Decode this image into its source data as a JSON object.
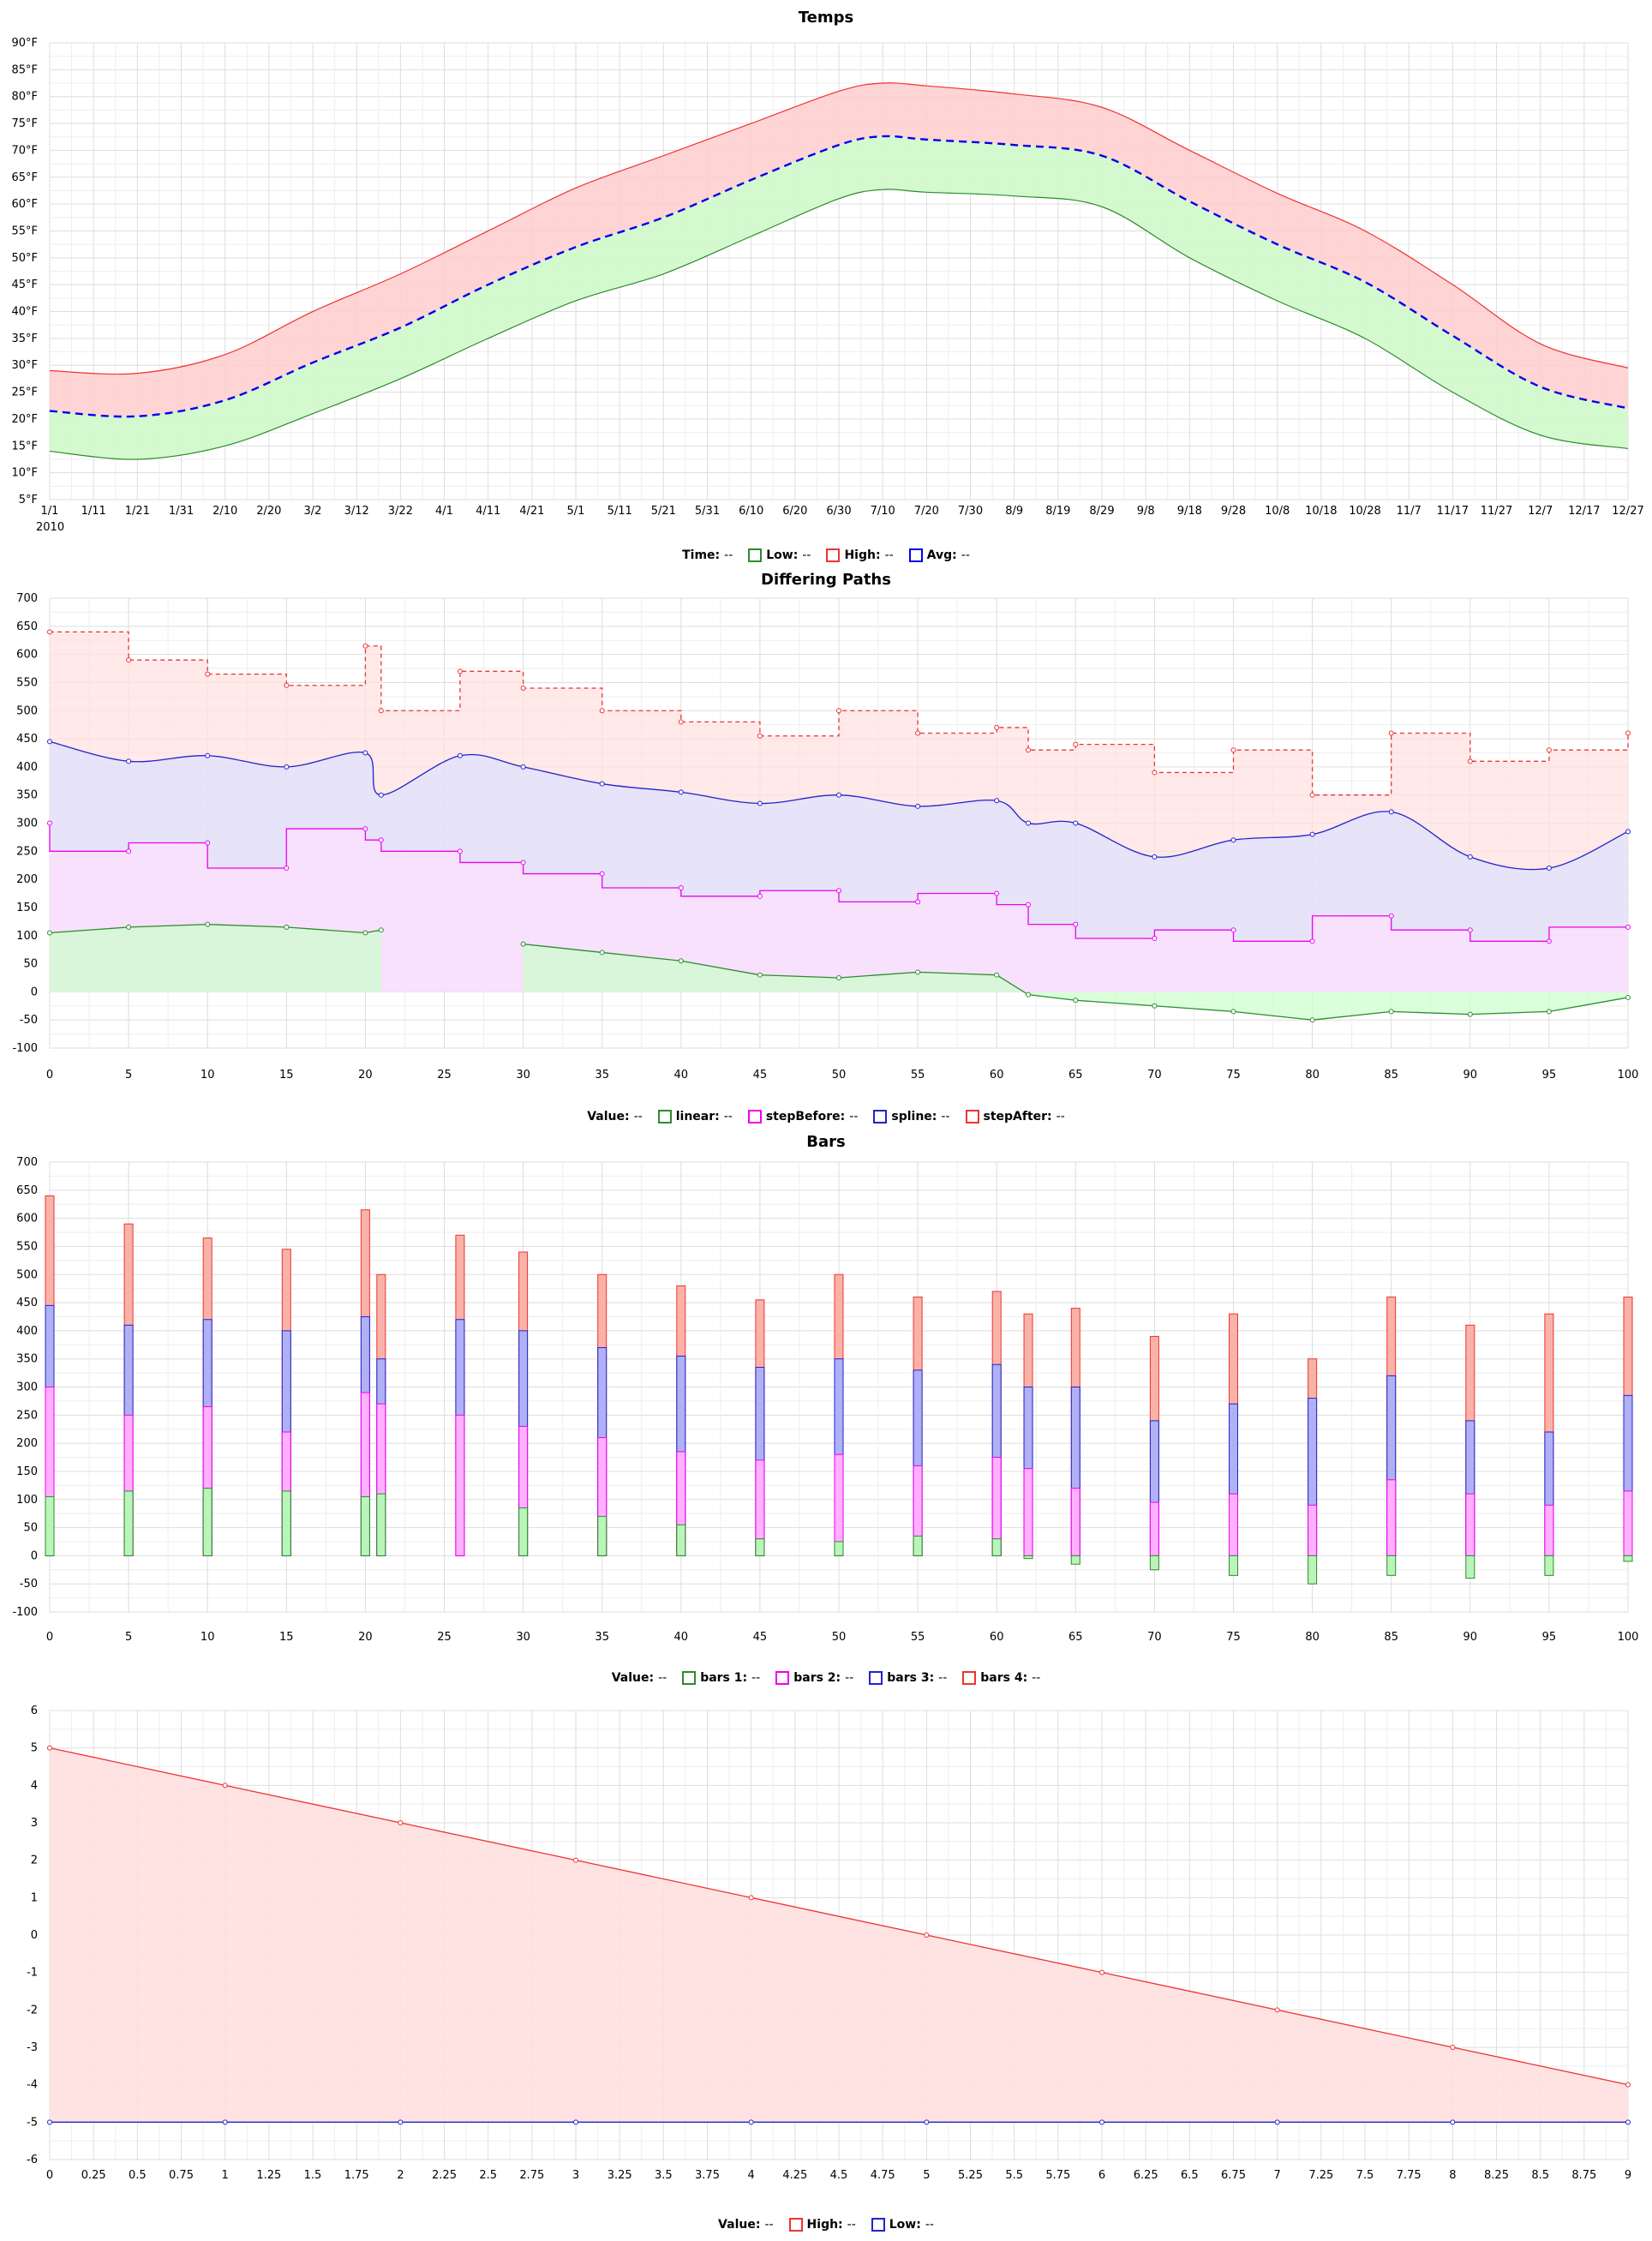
{
  "chart_data": [
    {
      "type": "area",
      "title": "Temps",
      "ylim": [
        5,
        90
      ],
      "yticks": [
        "5°F",
        "10°F",
        "15°F",
        "20°F",
        "25°F",
        "30°F",
        "35°F",
        "40°F",
        "45°F",
        "50°F",
        "55°F",
        "60°F",
        "65°F",
        "70°F",
        "75°F",
        "80°F",
        "85°F",
        "90°F"
      ],
      "xlim": [
        0,
        364
      ],
      "xticks": [
        "1/1",
        "1/11",
        "1/21",
        "1/31",
        "2/10",
        "2/20",
        "3/2",
        "3/12",
        "3/22",
        "4/1",
        "4/11",
        "4/21",
        "5/1",
        "5/11",
        "5/21",
        "5/31",
        "6/10",
        "6/20",
        "6/30",
        "7/10",
        "7/20",
        "7/30",
        "8/9",
        "8/19",
        "8/29",
        "9/8",
        "9/18",
        "9/28",
        "10/8",
        "10/18",
        "10/28",
        "11/7",
        "11/17",
        "11/27",
        "12/7",
        "12/17",
        "12/27"
      ],
      "xtick_year": "2010",
      "grid": true,
      "x": [
        "1/1",
        "1/21",
        "2/10",
        "3/2",
        "3/22",
        "4/11",
        "5/1",
        "5/21",
        "6/10",
        "6/30",
        "7/10",
        "7/20",
        "8/9",
        "8/29",
        "9/18",
        "10/8",
        "10/28",
        "11/17",
        "12/7",
        "12/27"
      ],
      "series": [
        {
          "name": "Low",
          "color": "#2e8b2e",
          "fill": "#ccffcc",
          "values": [
            14,
            12.5,
            15,
            21,
            27.5,
            35,
            42,
            47,
            54,
            61,
            62.7,
            62.2,
            61.5,
            59.5,
            50,
            42,
            35,
            25,
            17,
            14.5
          ]
        },
        {
          "name": "High",
          "color": "#ee3333",
          "fill": "#ffcccc",
          "values": [
            29,
            28.5,
            32,
            40,
            47,
            55,
            63,
            69,
            75,
            81,
            82.5,
            82,
            80.5,
            78,
            70,
            62,
            55,
            45,
            34,
            29.5
          ]
        },
        {
          "name": "Avg",
          "color": "#0000ee",
          "dashed": true,
          "values": [
            21.5,
            20.5,
            23.5,
            30.5,
            37,
            45,
            52,
            57.5,
            64.5,
            71,
            72.6,
            72,
            71,
            69,
            60.5,
            52.5,
            45.5,
            35.5,
            26,
            22
          ]
        }
      ],
      "legend": {
        "key": "Time:",
        "value": "--",
        "items": [
          {
            "label": "Low:",
            "value": "--",
            "color": "#2e8b2e"
          },
          {
            "label": "High:",
            "value": "--",
            "color": "#ee3333"
          },
          {
            "label": "Avg:",
            "value": "--",
            "color": "#0000ee"
          }
        ]
      }
    },
    {
      "type": "line",
      "title": "Differing Paths",
      "ylim": [
        -100,
        700
      ],
      "yticks": [
        "-100",
        "-50",
        "0",
        "50",
        "100",
        "150",
        "200",
        "250",
        "300",
        "350",
        "400",
        "450",
        "500",
        "550",
        "600",
        "650",
        "700"
      ],
      "xlim": [
        0,
        100
      ],
      "xticks": [
        "0",
        "5",
        "10",
        "15",
        "20",
        "25",
        "30",
        "35",
        "40",
        "45",
        "50",
        "55",
        "60",
        "65",
        "70",
        "75",
        "80",
        "85",
        "90",
        "95",
        "100"
      ],
      "grid": true,
      "x": [
        0,
        5,
        10,
        15,
        20,
        21,
        26,
        30,
        35,
        40,
        45,
        50,
        55,
        60,
        62,
        65,
        70,
        75,
        80,
        85,
        90,
        95,
        100
      ],
      "series": [
        {
          "name": "linear",
          "color": "#2e8b2e",
          "fill": "#ccffcc",
          "values": [
            105,
            115,
            120,
            115,
            105,
            110,
            null,
            85,
            70,
            55,
            30,
            25,
            35,
            30,
            -5,
            -15,
            -25,
            -35,
            -50,
            -35,
            -40,
            -35,
            -10
          ]
        },
        {
          "name": "stepBefore",
          "color": "#ee00ee",
          "fill": "#ffe0ff",
          "values": [
            300,
            250,
            265,
            220,
            290,
            270,
            250,
            230,
            210,
            185,
            170,
            180,
            160,
            175,
            155,
            120,
            95,
            110,
            90,
            135,
            110,
            90,
            115
          ]
        },
        {
          "name": "spline",
          "color": "#2222cc",
          "fill": "#dde0ff",
          "values": [
            445,
            410,
            420,
            400,
            425,
            350,
            420,
            400,
            370,
            355,
            335,
            350,
            330,
            340,
            300,
            300,
            240,
            270,
            280,
            320,
            240,
            220,
            285
          ]
        },
        {
          "name": "stepAfter",
          "color": "#ee3333",
          "fill": "#ffe0e0",
          "dashed": true,
          "values": [
            640,
            590,
            565,
            545,
            615,
            500,
            570,
            540,
            500,
            480,
            455,
            500,
            460,
            470,
            430,
            440,
            390,
            430,
            350,
            460,
            410,
            430,
            460
          ]
        }
      ],
      "legend": {
        "key": "Value:",
        "value": "--",
        "items": [
          {
            "label": "linear:",
            "value": "--",
            "color": "#2e8b2e"
          },
          {
            "label": "stepBefore:",
            "value": "--",
            "color": "#ee00ee"
          },
          {
            "label": "spline:",
            "value": "--",
            "color": "#2222cc"
          },
          {
            "label": "stepAfter:",
            "value": "--",
            "color": "#ee3333"
          }
        ]
      }
    },
    {
      "type": "bar",
      "title": "Bars",
      "ylim": [
        -100,
        700
      ],
      "yticks": [
        "-100",
        "-50",
        "0",
        "50",
        "100",
        "150",
        "200",
        "250",
        "300",
        "350",
        "400",
        "450",
        "500",
        "550",
        "600",
        "650",
        "700"
      ],
      "xlim": [
        0,
        100
      ],
      "xticks": [
        "0",
        "5",
        "10",
        "15",
        "20",
        "25",
        "30",
        "35",
        "40",
        "45",
        "50",
        "55",
        "60",
        "65",
        "70",
        "75",
        "80",
        "85",
        "90",
        "95",
        "100"
      ],
      "grid": true,
      "x": [
        0,
        5,
        10,
        15,
        20,
        21,
        26,
        30,
        35,
        40,
        45,
        50,
        55,
        60,
        62,
        65,
        70,
        75,
        80,
        85,
        90,
        95,
        100
      ],
      "series": [
        {
          "name": "bars 1",
          "color": "#2e8b2e",
          "fill": "#b9f5b9",
          "values": [
            105,
            115,
            120,
            115,
            105,
            110,
            null,
            85,
            70,
            55,
            30,
            25,
            35,
            30,
            -5,
            -15,
            -25,
            -35,
            -50,
            -35,
            -40,
            -35,
            -10
          ]
        },
        {
          "name": "bars 2",
          "color": "#ee00ee",
          "fill": "#ffb0ff",
          "values": [
            300,
            250,
            265,
            220,
            290,
            270,
            250,
            230,
            210,
            185,
            170,
            180,
            160,
            175,
            155,
            120,
            95,
            110,
            90,
            135,
            110,
            90,
            115
          ]
        },
        {
          "name": "bars 3",
          "color": "#2222cc",
          "fill": "#b0b0f5",
          "values": [
            445,
            410,
            420,
            400,
            425,
            350,
            420,
            400,
            370,
            355,
            335,
            350,
            330,
            340,
            300,
            300,
            240,
            270,
            280,
            320,
            240,
            220,
            285
          ]
        },
        {
          "name": "bars 4",
          "color": "#ee3333",
          "fill": "#f9b2a8",
          "values": [
            640,
            590,
            565,
            545,
            615,
            500,
            570,
            540,
            500,
            480,
            455,
            500,
            460,
            470,
            430,
            440,
            390,
            430,
            350,
            460,
            410,
            430,
            460
          ]
        }
      ],
      "legend": {
        "key": "Value:",
        "value": "--",
        "items": [
          {
            "label": "bars 1:",
            "value": "--",
            "color": "#2e8b2e"
          },
          {
            "label": "bars 2:",
            "value": "--",
            "color": "#ee00ee"
          },
          {
            "label": "bars 3:",
            "value": "--",
            "color": "#2222cc"
          },
          {
            "label": "bars 4:",
            "value": "--",
            "color": "#ee3333"
          }
        ]
      }
    },
    {
      "type": "area",
      "title": "",
      "ylim": [
        -6,
        6
      ],
      "yticks": [
        "-6",
        "-5",
        "-4",
        "-3",
        "-2",
        "-1",
        "0",
        "1",
        "2",
        "3",
        "4",
        "5",
        "6"
      ],
      "xlim": [
        0,
        9
      ],
      "xticks": [
        "0",
        "0.25",
        "0.5",
        "0.75",
        "1",
        "1.25",
        "1.5",
        "1.75",
        "2",
        "2.25",
        "2.5",
        "2.75",
        "3",
        "3.25",
        "3.5",
        "3.75",
        "4",
        "4.25",
        "4.5",
        "4.75",
        "5",
        "5.25",
        "5.5",
        "5.75",
        "6",
        "6.25",
        "6.5",
        "6.75",
        "7",
        "7.25",
        "7.5",
        "7.75",
        "8",
        "8.25",
        "8.5",
        "8.75",
        "9"
      ],
      "grid": true,
      "x": [
        0,
        1,
        2,
        3,
        4,
        5,
        6,
        7,
        8,
        9
      ],
      "series": [
        {
          "name": "High",
          "color": "#ee3333",
          "fill": "#ffe0e0",
          "values": [
            5,
            4,
            3,
            2,
            1,
            0,
            -1,
            -2,
            -3,
            -4
          ]
        },
        {
          "name": "Low",
          "color": "#2222cc",
          "values": [
            -5,
            -5,
            -5,
            -5,
            -5,
            -5,
            -5,
            -5,
            -5,
            -5
          ]
        }
      ],
      "legend": {
        "key": "Value:",
        "value": "--",
        "items": [
          {
            "label": "High:",
            "value": "--",
            "color": "#ee3333"
          },
          {
            "label": "Low:",
            "value": "--",
            "color": "#2222cc"
          }
        ]
      }
    }
  ]
}
